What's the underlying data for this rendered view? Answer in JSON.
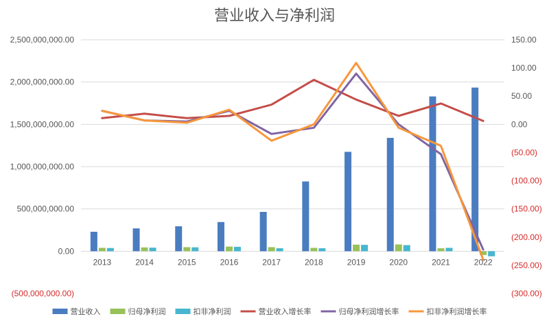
{
  "chart_data": {
    "type": "bar",
    "title": "营业收入与净利润",
    "categories": [
      "2013",
      "2014",
      "2015",
      "2016",
      "2017",
      "2018",
      "2019",
      "2020",
      "2021",
      "2022"
    ],
    "left_axis": {
      "range": [
        -500000000,
        2500000000
      ],
      "ticks": [
        "(500,000,000.00)",
        "0.00",
        "500,000,000.00",
        "1,000,000,000.00",
        "1,500,000,000.00",
        "2,000,000,000.00",
        "2,500,000,000.00"
      ]
    },
    "right_axis": {
      "range": [
        -300,
        150
      ],
      "ticks": [
        "(300.00)",
        "(250.00)",
        "(200.00)",
        "(150.00)",
        "(100.00)",
        "(50.00)",
        "0.00",
        "50.00",
        "100.00",
        "150.00"
      ]
    },
    "bar_series": [
      {
        "name": "营业收入",
        "color": "#4a7cc0",
        "values": [
          230000000,
          270000000,
          295000000,
          345000000,
          465000000,
          825000000,
          1175000000,
          1340000000,
          1830000000,
          1935000000
        ]
      },
      {
        "name": "归母净利润",
        "color": "#98c15a",
        "values": [
          40000000,
          45000000,
          48000000,
          55000000,
          48000000,
          40000000,
          78000000,
          80000000,
          35000000,
          -45000000
        ]
      },
      {
        "name": "扣非净利润",
        "color": "#48b6ce",
        "values": [
          38000000,
          42000000,
          46000000,
          52000000,
          35000000,
          35000000,
          75000000,
          72000000,
          40000000,
          -60000000
        ]
      }
    ],
    "line_series": [
      {
        "name": "营业收入增长率",
        "color": "#c44d48",
        "values": [
          11,
          19,
          11,
          15,
          35,
          79,
          44,
          15,
          37,
          6
        ]
      },
      {
        "name": "归母净利润增长率",
        "color": "#8064a2",
        "values": [
          24,
          7,
          5,
          24,
          -17,
          -6,
          90,
          0,
          -53,
          -222
        ]
      },
      {
        "name": "扣非净利润增长率",
        "color": "#f7963b",
        "values": [
          24,
          7,
          3,
          26,
          -29,
          0,
          109,
          -6,
          -38,
          -240
        ]
      }
    ],
    "legend_position": "bottom",
    "grid": true
  }
}
